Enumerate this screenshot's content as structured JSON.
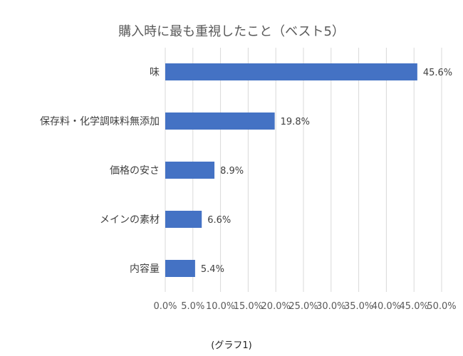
{
  "chart_data": {
    "type": "bar",
    "orientation": "horizontal",
    "title": "購入時に最も重視したこと（ベスト5）",
    "categories": [
      "味",
      "保存料・化学調味料無添加",
      "価格の安さ",
      "メインの素材",
      "内容量"
    ],
    "values": [
      45.6,
      19.8,
      8.9,
      6.6,
      5.4
    ],
    "data_labels": [
      "45.6%",
      "19.8%",
      "8.9%",
      "6.6%",
      "5.4%"
    ],
    "xlim": [
      0,
      50
    ],
    "x_ticks": [
      "0.0%",
      "5.0%",
      "10.0%",
      "15.0%",
      "20.0%",
      "25.0%",
      "30.0%",
      "35.0%",
      "40.0%",
      "45.0%",
      "50.0%"
    ],
    "xlabel": "",
    "ylabel": "",
    "grid": "vertical",
    "legend": "none",
    "bar_color": "#4472C4"
  },
  "caption": "(グラフ1)"
}
